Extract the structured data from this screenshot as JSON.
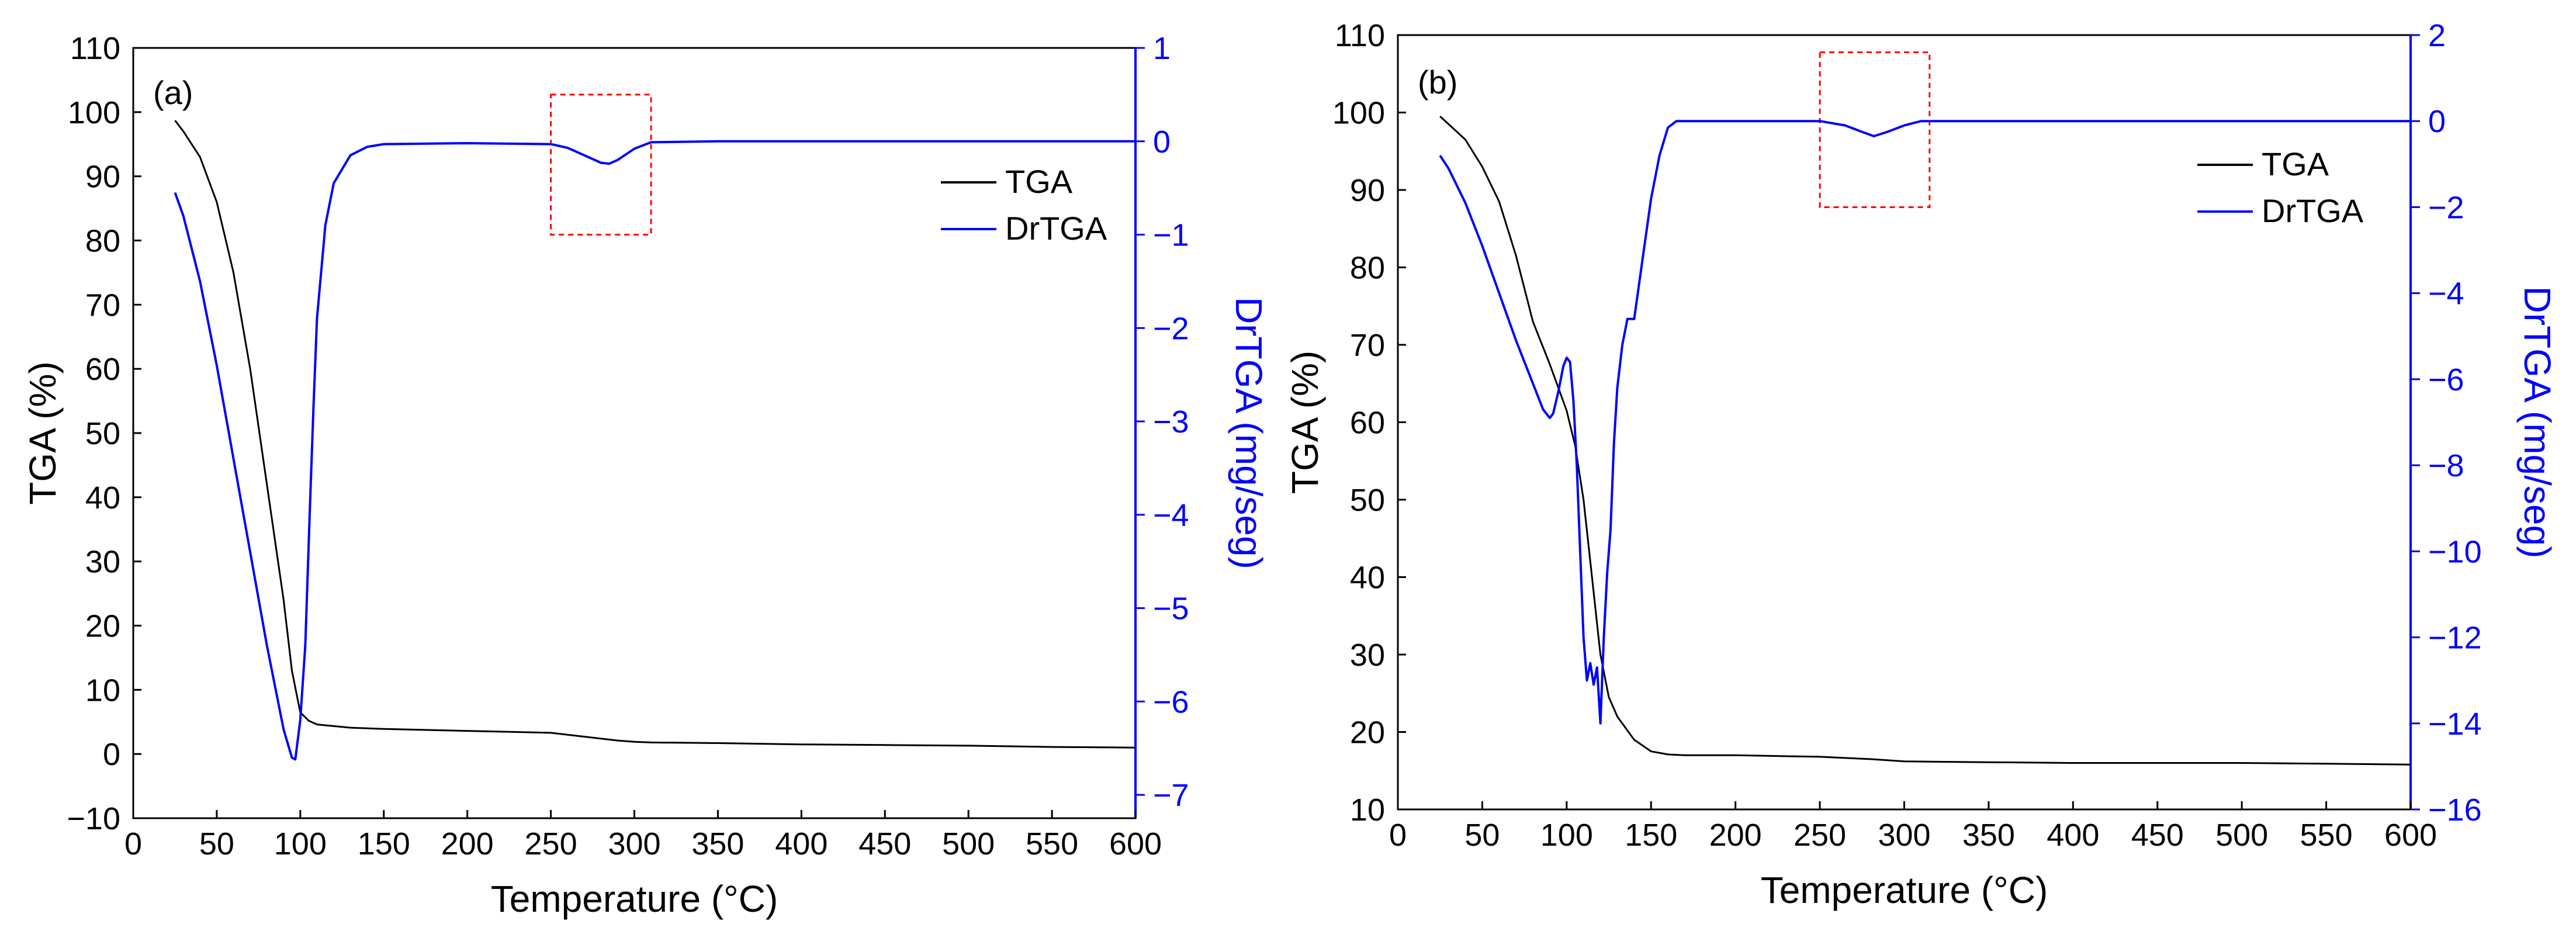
{
  "colors": {
    "tga": "#000000",
    "drtga": "#0000ff",
    "highlight": "#ff0000",
    "axis": "#000000",
    "right_axis": "#0000ff"
  },
  "chart_data": [
    {
      "type": "line",
      "panel_label": "(a)",
      "xlabel": "Temperature (°C)",
      "ylabel": "TGA (%)",
      "y2label": "DrTGA (mg/seg)",
      "xlim": [
        0,
        600
      ],
      "ylim": [
        -10,
        110
      ],
      "y2lim": [
        -7.25,
        1
      ],
      "xticks": [
        0,
        50,
        100,
        150,
        200,
        250,
        300,
        350,
        400,
        450,
        500,
        550,
        600
      ],
      "yticks": [
        -10,
        0,
        10,
        20,
        30,
        40,
        50,
        60,
        70,
        80,
        90,
        100,
        110
      ],
      "y2ticks": [
        -7,
        -6,
        -5,
        -4,
        -3,
        -2,
        -1,
        0,
        1
      ],
      "xtick_labels": [
        "0",
        "50",
        "100",
        "150",
        "200",
        "250",
        "300",
        "350",
        "400",
        "450",
        "500",
        "550",
        "600"
      ],
      "ytick_labels": [
        "−10",
        "0",
        "10",
        "20",
        "30",
        "40",
        "50",
        "60",
        "70",
        "80",
        "90",
        "100",
        "110"
      ],
      "y2tick_labels": [
        "−7",
        "−6",
        "−5",
        "−4",
        "−3",
        "−2",
        "−1",
        "0",
        "1"
      ],
      "legend": [
        "TGA",
        "DrTGA"
      ],
      "legend_position": "top-right",
      "highlight_box": {
        "x": [
          250,
          310
        ],
        "y2": [
          -1.0,
          0.5
        ]
      },
      "series": [
        {
          "name": "TGA",
          "axis": "left",
          "x": [
            25,
            30,
            40,
            50,
            60,
            70,
            80,
            90,
            95,
            100,
            105,
            110,
            130,
            150,
            200,
            250,
            270,
            290,
            300,
            310,
            350,
            400,
            450,
            500,
            550,
            600
          ],
          "y": [
            98.7,
            97,
            93,
            86,
            75,
            60,
            42,
            24,
            13,
            6.5,
            5.2,
            4.6,
            4.1,
            3.9,
            3.6,
            3.3,
            2.7,
            2.1,
            1.9,
            1.8,
            1.7,
            1.5,
            1.4,
            1.3,
            1.1,
            1.0
          ]
        },
        {
          "name": "DrTGA",
          "axis": "right",
          "x": [
            25,
            30,
            40,
            50,
            60,
            70,
            80,
            90,
            95,
            97,
            100,
            103,
            106,
            108,
            110,
            115,
            120,
            130,
            140,
            150,
            200,
            250,
            260,
            270,
            280,
            285,
            290,
            300,
            310,
            350,
            400,
            500,
            600
          ],
          "y": [
            -0.55,
            -0.8,
            -1.5,
            -2.4,
            -3.4,
            -4.4,
            -5.4,
            -6.3,
            -6.6,
            -6.62,
            -6.2,
            -5.4,
            -3.8,
            -2.8,
            -1.9,
            -0.9,
            -0.45,
            -0.15,
            -0.06,
            -0.03,
            -0.02,
            -0.03,
            -0.07,
            -0.15,
            -0.23,
            -0.24,
            -0.2,
            -0.08,
            -0.01,
            0,
            0,
            0,
            0
          ]
        }
      ]
    },
    {
      "type": "line",
      "panel_label": "(b)",
      "xlabel": "Temperature (°C)",
      "ylabel": "TGA (%)",
      "y2label": "DrTGA (mg/seg)",
      "xlim": [
        0,
        600
      ],
      "ylim": [
        10,
        110
      ],
      "y2lim": [
        -16,
        2
      ],
      "xticks": [
        0,
        50,
        100,
        150,
        200,
        250,
        300,
        350,
        400,
        450,
        500,
        550,
        600
      ],
      "yticks": [
        10,
        20,
        30,
        40,
        50,
        60,
        70,
        80,
        90,
        100,
        110
      ],
      "y2ticks": [
        -16,
        -14,
        -12,
        -10,
        -8,
        -6,
        -4,
        -2,
        0,
        2
      ],
      "xtick_labels": [
        "0",
        "50",
        "100",
        "150",
        "200",
        "250",
        "300",
        "350",
        "400",
        "450",
        "500",
        "550",
        "600"
      ],
      "ytick_labels": [
        "10",
        "20",
        "30",
        "40",
        "50",
        "60",
        "70",
        "80",
        "90",
        "100",
        "110"
      ],
      "y2tick_labels": [
        "−16",
        "−14",
        "−12",
        "−10",
        "−8",
        "−6",
        "−4",
        "−2",
        "0",
        "2"
      ],
      "legend": [
        "TGA",
        "DrTGA"
      ],
      "legend_position": "top-right",
      "highlight_box": {
        "x": [
          250,
          315
        ],
        "y2": [
          -2.0,
          1.6
        ]
      },
      "series": [
        {
          "name": "TGA",
          "axis": "left",
          "x": [
            25,
            30,
            40,
            50,
            60,
            70,
            80,
            90,
            95,
            100,
            105,
            110,
            115,
            120,
            125,
            130,
            140,
            150,
            160,
            170,
            200,
            250,
            280,
            300,
            350,
            400,
            450,
            500,
            550,
            600
          ],
          "y": [
            99.5,
            98.5,
            96.5,
            93,
            88.5,
            81.5,
            73,
            67.5,
            64.5,
            61.5,
            57,
            50,
            40,
            30,
            24.5,
            22,
            19,
            17.5,
            17.1,
            17,
            17,
            16.8,
            16.5,
            16.2,
            16.1,
            16,
            16,
            16,
            15.9,
            15.8
          ]
        },
        {
          "name": "DrTGA",
          "axis": "right",
          "x": [
            25,
            30,
            40,
            50,
            60,
            70,
            80,
            86,
            90,
            92,
            95,
            98,
            100,
            102,
            104,
            106,
            108,
            110,
            112,
            114,
            116,
            118,
            120,
            122,
            124,
            126,
            128,
            130,
            133,
            136,
            140,
            145,
            150,
            155,
            160,
            165,
            170,
            200,
            250,
            265,
            275,
            282,
            290,
            300,
            310,
            350,
            400,
            500,
            600
          ],
          "y": [
            -0.8,
            -1.1,
            -1.9,
            -2.9,
            -4.0,
            -5.1,
            -6.1,
            -6.7,
            -6.9,
            -6.8,
            -6.3,
            -5.7,
            -5.5,
            -5.6,
            -6.5,
            -8.0,
            -10.0,
            -12.0,
            -13.0,
            -12.6,
            -13.1,
            -12.7,
            -14.0,
            -12.0,
            -10.5,
            -9.5,
            -7.5,
            -6.2,
            -5.2,
            -4.6,
            -4.6,
            -3.2,
            -1.8,
            -0.8,
            -0.15,
            0,
            0,
            0,
            0,
            -0.1,
            -0.25,
            -0.35,
            -0.25,
            -0.1,
            0,
            0,
            0,
            0,
            0
          ]
        }
      ]
    }
  ]
}
